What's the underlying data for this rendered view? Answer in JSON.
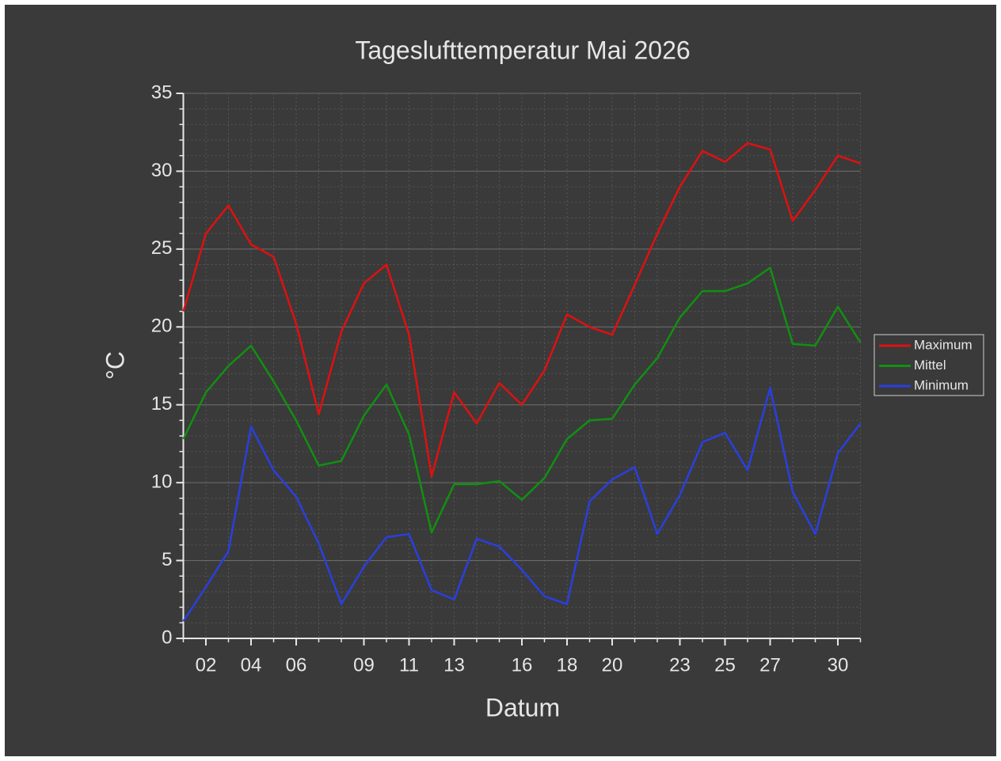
{
  "chart_data": {
    "type": "line",
    "title": "Tageslufttemperatur Mai 2026",
    "xlabel": "Datum",
    "ylabel": "°C",
    "x": [
      1,
      2,
      3,
      4,
      5,
      6,
      7,
      8,
      9,
      10,
      11,
      12,
      13,
      14,
      15,
      16,
      17,
      18,
      19,
      20,
      21,
      22,
      23,
      24,
      25,
      26,
      27,
      28,
      29,
      30,
      31
    ],
    "xlim": [
      1,
      31
    ],
    "xticks": [
      {
        "value": 2,
        "label": "02"
      },
      {
        "value": 4,
        "label": "04"
      },
      {
        "value": 6,
        "label": "06"
      },
      {
        "value": 9,
        "label": "09"
      },
      {
        "value": 11,
        "label": "11"
      },
      {
        "value": 13,
        "label": "13"
      },
      {
        "value": 16,
        "label": "16"
      },
      {
        "value": 18,
        "label": "18"
      },
      {
        "value": 20,
        "label": "20"
      },
      {
        "value": 23,
        "label": "23"
      },
      {
        "value": 25,
        "label": "25"
      },
      {
        "value": 27,
        "label": "27"
      },
      {
        "value": 30,
        "label": "30"
      }
    ],
    "ylim": [
      0,
      35
    ],
    "yticks": [
      0,
      5,
      10,
      15,
      20,
      25,
      30,
      35
    ],
    "grid": true,
    "legend": "right",
    "series": [
      {
        "name": "Maximum",
        "color": "#e01010",
        "values": [
          21.0,
          26.0,
          27.8,
          25.3,
          24.5,
          20.2,
          14.4,
          19.7,
          22.8,
          24.0,
          19.5,
          10.4,
          15.8,
          13.8,
          16.4,
          15.0,
          17.2,
          20.8,
          20.0,
          19.5,
          22.7,
          26.0,
          29.0,
          31.3,
          30.6,
          31.8,
          31.4,
          26.8,
          28.8,
          31.0,
          30.5
        ]
      },
      {
        "name": "Mittel",
        "color": "#119011",
        "values": [
          12.8,
          15.8,
          17.5,
          18.8,
          16.5,
          14.0,
          11.1,
          11.4,
          14.3,
          16.3,
          13.1,
          6.8,
          9.9,
          9.9,
          10.1,
          8.9,
          10.3,
          12.8,
          14.0,
          14.1,
          16.3,
          18.0,
          20.6,
          22.3,
          22.3,
          22.8,
          23.8,
          18.9,
          18.8,
          21.3,
          19.0
        ]
      },
      {
        "name": "Minimum",
        "color": "#2a3fe0",
        "values": [
          1.1,
          3.3,
          5.6,
          13.6,
          10.8,
          9.1,
          6.1,
          2.2,
          4.6,
          6.5,
          6.7,
          3.1,
          2.5,
          6.4,
          5.9,
          4.4,
          2.7,
          2.2,
          8.8,
          10.2,
          11.0,
          6.7,
          9.2,
          12.6,
          13.2,
          10.8,
          16.1,
          9.4,
          6.7,
          11.9,
          13.8
        ]
      }
    ]
  }
}
